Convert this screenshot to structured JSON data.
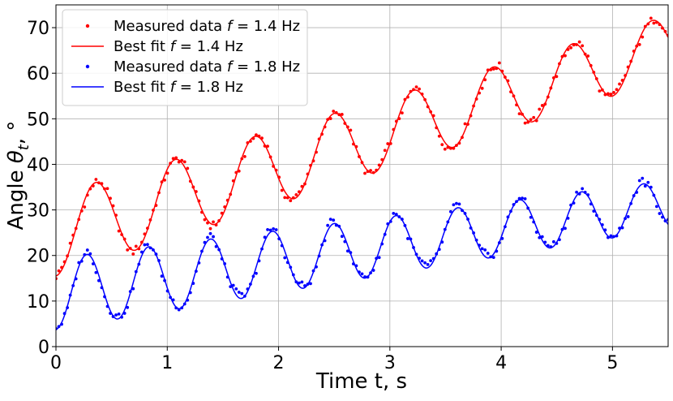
{
  "chart_data": {
    "type": "scatter",
    "xlabel": "Time t, s",
    "ylabel": "Angle θt, °",
    "xlim": [
      0,
      5.5
    ],
    "ylim": [
      0,
      75
    ],
    "xticks": [
      0,
      1,
      2,
      3,
      4,
      5
    ],
    "yticks": [
      0,
      10,
      20,
      30,
      40,
      50,
      60,
      70
    ],
    "grid": true,
    "legend_position": "top-left",
    "series": [
      {
        "name": "Measured data f = 1.4 Hz",
        "kind": "points",
        "color": "#ff0000",
        "model": {
          "offset": 24.5,
          "slope": 7.5,
          "amplitude": 9.0,
          "frequency": 1.4,
          "decay": 0.05
        }
      },
      {
        "name": "Best fit f = 1.4 Hz",
        "kind": "line",
        "color": "#ff0000",
        "model": {
          "offset": 24.5,
          "slope": 7.5,
          "amplitude": 9.0,
          "frequency": 1.4,
          "decay": 0.05
        }
      },
      {
        "name": "Measured data f = 1.8 Hz",
        "kind": "points",
        "color": "#0000ff",
        "model": {
          "offset": 11.6,
          "slope": 3.55,
          "amplitude": 7.8,
          "frequency": 1.8,
          "decay": 0.07
        }
      },
      {
        "name": "Best fit f = 1.8 Hz",
        "kind": "line",
        "color": "#0000ff",
        "model": {
          "offset": 11.6,
          "slope": 3.55,
          "amplitude": 7.8,
          "frequency": 1.8,
          "decay": 0.07
        }
      }
    ]
  },
  "legend": [
    {
      "prefix": "Measured data ",
      "var": "f",
      "suffix": " = 1.4 Hz",
      "kind": "points",
      "color": "#ff0000"
    },
    {
      "prefix": "Best fit ",
      "var": "f",
      "suffix": " = 1.4 Hz",
      "kind": "line",
      "color": "#ff0000"
    },
    {
      "prefix": "Measured data ",
      "var": "f",
      "suffix": " = 1.8 Hz",
      "kind": "points",
      "color": "#0000ff"
    },
    {
      "prefix": "Best fit ",
      "var": "f",
      "suffix": " = 1.8 Hz",
      "kind": "line",
      "color": "#0000ff"
    }
  ],
  "axis_text": {
    "x_label": "Time t, s",
    "y_label_prefix": "Angle ",
    "y_label_var": "θ",
    "y_label_sub": "t",
    "y_label_suffix": ",  °"
  }
}
